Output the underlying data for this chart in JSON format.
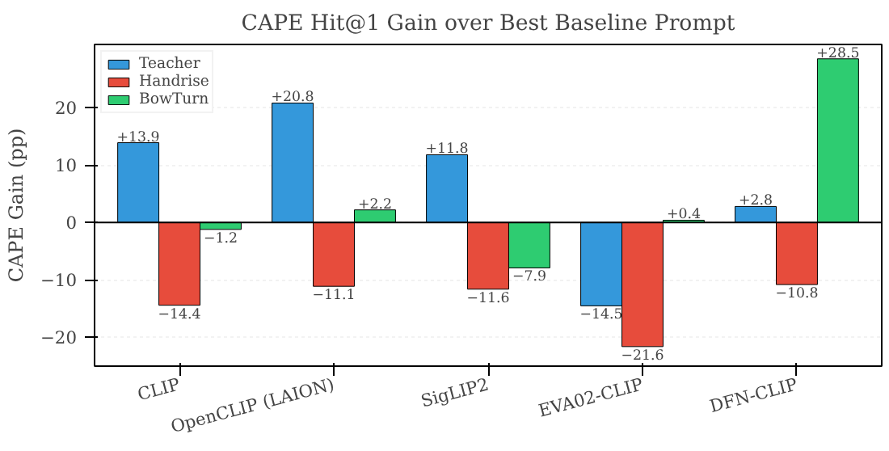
{
  "chart_data": {
    "type": "bar",
    "title": "CAPE Hit@1 Gain over Best Baseline Prompt",
    "ylabel": "CAPE Gain (pp)",
    "categories": [
      "CLIP",
      "OpenCLIP (LAION)",
      "SigLIP2",
      "EVA02-CLIP",
      "DFN-CLIP"
    ],
    "series": [
      {
        "name": "Teacher",
        "color": "#3498db",
        "values": [
          13.9,
          20.8,
          11.8,
          -14.5,
          2.8
        ],
        "value_labels": [
          "+13.9",
          "+20.8",
          "+11.8",
          "−14.5",
          "+2.8"
        ]
      },
      {
        "name": "Handrise",
        "color": "#e74c3c",
        "values": [
          -14.4,
          -11.1,
          -11.6,
          -21.6,
          -10.8
        ],
        "value_labels": [
          "−14.4",
          "−11.1",
          "−11.6",
          "−21.6",
          "−10.8"
        ]
      },
      {
        "name": "BowTurn",
        "color": "#2ecc71",
        "values": [
          -1.2,
          2.2,
          -7.9,
          0.4,
          28.5
        ],
        "value_labels": [
          "−1.2",
          "+2.2",
          "−7.9",
          "+0.4",
          "+28.5"
        ]
      }
    ],
    "ylim": [
      -25,
      31
    ],
    "yticks": [
      -20,
      -10,
      0,
      10,
      20
    ],
    "grid": "y",
    "legend": "top left",
    "ref_lines": [
      {
        "axis": "y",
        "value": 0,
        "color": "#000000"
      }
    ]
  }
}
